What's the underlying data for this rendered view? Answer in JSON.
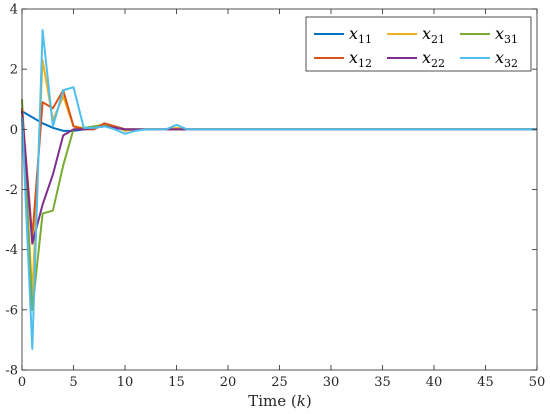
{
  "chart_data": {
    "type": "line",
    "title": "",
    "xlabel": "Time (k)",
    "ylabel": "",
    "xlim": [
      0,
      50
    ],
    "ylim": [
      -8,
      4
    ],
    "xticks": [
      0,
      5,
      10,
      15,
      20,
      25,
      30,
      35,
      40,
      45,
      50
    ],
    "yticks": [
      -8,
      -6,
      -4,
      -2,
      0,
      2,
      4
    ],
    "grid": false,
    "legend": {
      "placement": "top-right",
      "columns": 3,
      "entries": [
        {
          "base": "x",
          "sub": "11"
        },
        {
          "base": "x",
          "sub": "21"
        },
        {
          "base": "x",
          "sub": "31"
        },
        {
          "base": "x",
          "sub": "12"
        },
        {
          "base": "x",
          "sub": "22"
        },
        {
          "base": "x",
          "sub": "32"
        }
      ]
    },
    "series": [
      {
        "name": "x11",
        "color": "#0072BD",
        "x": [
          0,
          1,
          2,
          3,
          4,
          5,
          6,
          7,
          8,
          9,
          10,
          11,
          12,
          13,
          14,
          15,
          16,
          17,
          18,
          19,
          20,
          25,
          30,
          35,
          40,
          45,
          50
        ],
        "y": [
          0.6,
          0.4,
          0.2,
          0.05,
          -0.05,
          -0.05,
          0,
          0.05,
          0.15,
          0.1,
          0,
          0,
          0,
          0,
          0,
          0,
          0,
          0,
          0,
          0,
          0,
          0,
          0,
          0,
          0,
          0,
          0
        ]
      },
      {
        "name": "x21",
        "color": "#EDB120",
        "x": [
          0,
          1,
          2,
          3,
          4,
          5,
          6,
          7,
          8,
          9,
          10,
          11,
          12,
          13,
          14,
          15,
          16,
          17,
          18,
          19,
          20,
          25,
          30,
          35,
          40,
          45,
          50
        ],
        "y": [
          0.7,
          -5.5,
          2.3,
          0.3,
          1.1,
          0.1,
          0.05,
          0.05,
          0.2,
          0.1,
          -0.05,
          0,
          0,
          0,
          0,
          0.05,
          0,
          0,
          0,
          0,
          0,
          0,
          0,
          0,
          0,
          0,
          0
        ]
      },
      {
        "name": "x31",
        "color": "#77AC30",
        "x": [
          0,
          1,
          2,
          3,
          4,
          5,
          6,
          7,
          8,
          9,
          10,
          11,
          12,
          13,
          14,
          15,
          16,
          17,
          18,
          19,
          20,
          25,
          30,
          35,
          40,
          45,
          50
        ],
        "y": [
          1.0,
          -6.0,
          -2.8,
          -2.7,
          -1.2,
          0.0,
          0.05,
          0.1,
          0.15,
          0.05,
          0,
          0,
          0,
          0,
          0,
          0,
          0,
          0,
          0,
          0,
          0,
          0,
          0,
          0,
          0,
          0,
          0
        ]
      },
      {
        "name": "x12",
        "color": "#D95319",
        "x": [
          0,
          1,
          2,
          3,
          4,
          5,
          6,
          7,
          8,
          9,
          10,
          11,
          12,
          13,
          14,
          15,
          16,
          17,
          18,
          19,
          20,
          25,
          30,
          35,
          40,
          45,
          50
        ],
        "y": [
          0.7,
          -3.6,
          0.9,
          0.7,
          1.3,
          0.1,
          0.0,
          0.0,
          0.2,
          0.1,
          0.0,
          0,
          0,
          0,
          0,
          0,
          0,
          0,
          0,
          0,
          0,
          0,
          0,
          0,
          0,
          0,
          0
        ]
      },
      {
        "name": "x22",
        "color": "#7E2F8E",
        "x": [
          0,
          1,
          2,
          3,
          4,
          5,
          6,
          7,
          8,
          9,
          10,
          11,
          12,
          13,
          14,
          15,
          16,
          17,
          18,
          19,
          20,
          25,
          30,
          35,
          40,
          45,
          50
        ],
        "y": [
          0.6,
          -3.8,
          -2.5,
          -1.5,
          -0.2,
          0.0,
          0.0,
          0.05,
          0.1,
          0.05,
          0.0,
          0,
          0,
          0,
          0,
          0,
          0,
          0,
          0,
          0,
          0,
          0,
          0,
          0,
          0,
          0,
          0
        ]
      },
      {
        "name": "x32",
        "color": "#4DBEEE",
        "x": [
          0,
          1,
          2,
          3,
          4,
          5,
          6,
          7,
          8,
          9,
          10,
          11,
          12,
          13,
          14,
          15,
          16,
          17,
          18,
          19,
          20,
          25,
          30,
          35,
          40,
          45,
          50
        ],
        "y": [
          0.4,
          -7.3,
          3.3,
          0.1,
          1.3,
          1.4,
          0.05,
          0.05,
          0.1,
          0.0,
          -0.15,
          -0.05,
          0,
          0,
          0,
          0.15,
          0,
          0,
          0,
          0,
          0,
          0,
          0,
          0,
          0,
          0,
          0
        ]
      }
    ]
  }
}
